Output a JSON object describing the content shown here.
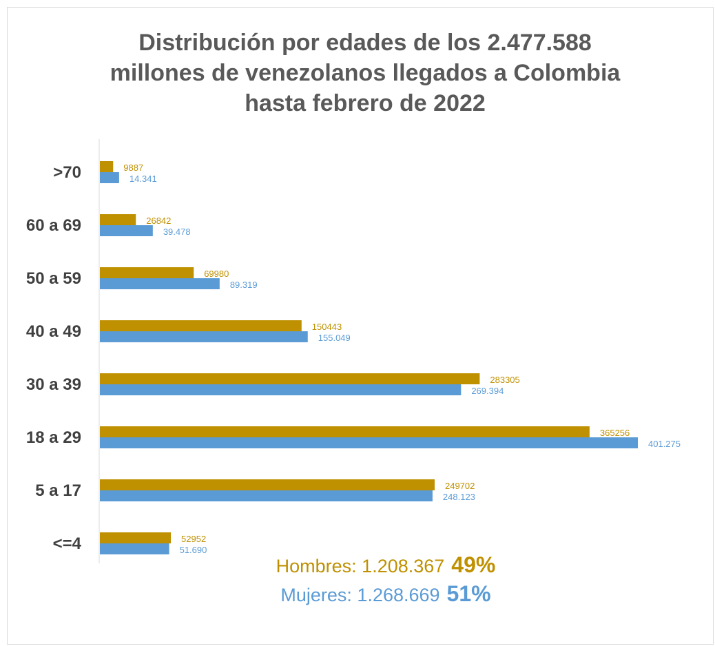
{
  "chart_data": {
    "type": "bar",
    "orientation": "horizontal",
    "title": "Distribución por edades de los 2.477.588 millones de venezolanos llegados a Colombia hasta febrero de 2022",
    "categories": [
      ">70",
      "60 a 69",
      "50 a 59",
      "40 a 49",
      "30 a 39",
      "18 a 29",
      "5 a 17",
      "<=4"
    ],
    "series": [
      {
        "values": [
          9887,
          26842,
          69980,
          150443,
          283305,
          365256,
          249702,
          52952
        ],
        "labels": [
          "9887",
          "26842",
          "69980",
          "150443",
          "283305",
          "365256",
          "249702",
          "52952"
        ],
        "color": "#bf9000"
      },
      {
        "values": [
          14341,
          39478,
          89319,
          155049,
          269394,
          401275,
          248123,
          51690
        ],
        "labels": [
          "14.341",
          "39.478",
          "89.319",
          "155.049",
          "269.394",
          "401.275",
          "248.123",
          "51.690"
        ],
        "color": "#5b9bd5"
      }
    ],
    "xlim": [
      0,
      401275
    ],
    "grid": false,
    "legend": "none"
  },
  "totals": {
    "men": {
      "text": "Hombres: 1.208.367",
      "percent": "49%",
      "color": "#bf9000"
    },
    "women": {
      "text": "Mujeres: 1.268.669",
      "percent": "51%",
      "color": "#5b9bd5"
    }
  }
}
